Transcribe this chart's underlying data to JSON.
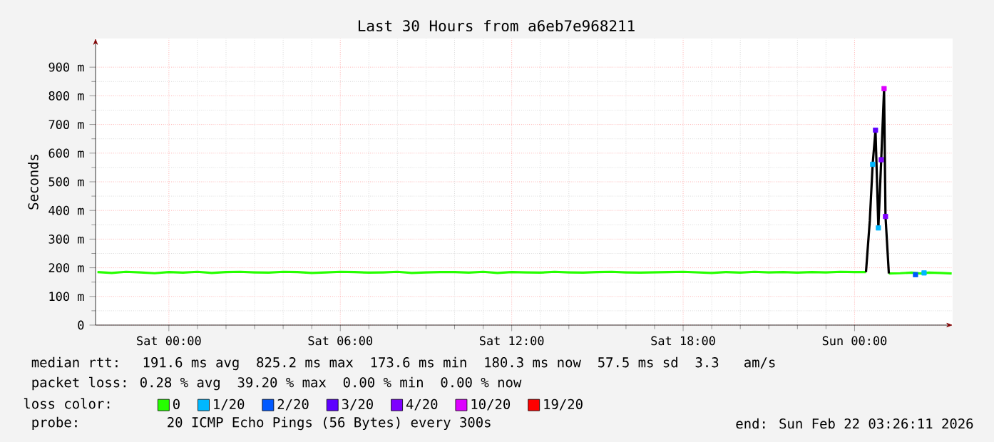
{
  "chart_data": {
    "type": "line",
    "title": "Last 30 Hours from a6eb7e968211",
    "ylabel": "Seconds",
    "legend_title": "loss color:",
    "xlim": [
      "2026-02-20T21:26",
      "2026-02-22T03:26"
    ],
    "xticks": [
      {
        "value": "2026-02-21T00:00",
        "label": "Sat 00:00"
      },
      {
        "value": "2026-02-21T06:00",
        "label": "Sat 06:00"
      },
      {
        "value": "2026-02-21T12:00",
        "label": "Sat 12:00"
      },
      {
        "value": "2026-02-21T18:00",
        "label": "Sat 18:00"
      },
      {
        "value": "2026-02-22T00:00",
        "label": "Sun 00:00"
      }
    ],
    "ylim": [
      0,
      1000
    ],
    "yticks": [
      0,
      {
        "value": 100,
        "label": "100 m"
      },
      {
        "value": 200,
        "label": "200 m"
      },
      {
        "value": 300,
        "label": "300 m"
      },
      {
        "value": 400,
        "label": "400 m"
      },
      {
        "value": 500,
        "label": "500 m"
      },
      {
        "value": 600,
        "label": "600 m"
      },
      {
        "value": 700,
        "label": "700 m"
      },
      {
        "value": 800,
        "label": "800 m"
      },
      {
        "value": 900,
        "label": "900 m"
      }
    ],
    "grid": true,
    "legend": "bottom",
    "series": [
      {
        "name": "0",
        "color": "#26ff00",
        "marker": "none",
        "x": [
          "2026-02-20T21:30",
          "2026-02-20T22:00",
          "2026-02-20T22:30",
          "2026-02-20T23:00",
          "2026-02-20T23:30",
          "2026-02-21T00:00",
          "2026-02-21T00:30",
          "2026-02-21T01:00",
          "2026-02-21T01:30",
          "2026-02-21T02:00",
          "2026-02-21T02:30",
          "2026-02-21T03:00",
          "2026-02-21T03:30",
          "2026-02-21T04:00",
          "2026-02-21T04:30",
          "2026-02-21T05:00",
          "2026-02-21T05:30",
          "2026-02-21T06:00",
          "2026-02-21T06:30",
          "2026-02-21T07:00",
          "2026-02-21T07:30",
          "2026-02-21T08:00",
          "2026-02-21T08:30",
          "2026-02-21T09:00",
          "2026-02-21T09:30",
          "2026-02-21T10:00",
          "2026-02-21T10:30",
          "2026-02-21T11:00",
          "2026-02-21T11:30",
          "2026-02-21T12:00",
          "2026-02-21T12:30",
          "2026-02-21T13:00",
          "2026-02-21T13:30",
          "2026-02-21T14:00",
          "2026-02-21T14:30",
          "2026-02-21T15:00",
          "2026-02-21T15:30",
          "2026-02-21T16:00",
          "2026-02-21T16:30",
          "2026-02-21T17:00",
          "2026-02-21T17:30",
          "2026-02-21T18:00",
          "2026-02-21T18:30",
          "2026-02-21T19:00",
          "2026-02-21T19:30",
          "2026-02-21T20:00",
          "2026-02-21T20:30",
          "2026-02-21T21:00",
          "2026-02-21T21:30",
          "2026-02-21T22:00",
          "2026-02-21T22:30",
          "2026-02-21T23:00",
          "2026-02-21T23:30",
          "2026-02-22T00:00",
          "2026-02-22T00:24",
          "2026-02-22T00:27",
          "2026-02-22T01:12",
          "2026-02-22T01:36",
          "2026-02-22T02:00",
          "2026-02-22T02:18",
          "2026-02-22T02:36",
          "2026-02-22T03:00",
          "2026-02-22T03:24"
        ],
        "values": [
          185,
          182,
          186,
          184,
          181,
          185,
          183,
          186,
          182,
          185,
          186,
          184,
          183,
          186,
          185,
          182,
          184,
          186,
          185,
          183,
          184,
          186,
          182,
          184,
          185,
          185,
          183,
          186,
          182,
          185,
          184,
          183,
          186,
          184,
          183,
          185,
          186,
          184,
          183,
          184,
          185,
          186,
          184,
          182,
          185,
          183,
          186,
          184,
          185,
          183,
          185,
          184,
          186,
          185,
          185,
          null,
          180,
          181,
          183,
          180,
          183,
          182,
          180
        ]
      },
      {
        "color": "#000000",
        "marker": "none",
        "x": [
          "2026-02-22T00:24",
          "2026-02-22T00:32",
          "2026-02-22T00:38",
          "2026-02-22T00:44",
          "2026-02-22T00:50",
          "2026-02-22T00:56",
          "2026-02-22T01:02",
          "2026-02-22T01:05",
          "2026-02-22T01:12"
        ],
        "values": [
          185,
          364,
          561,
          680,
          339,
          577,
          825,
          379,
          180
        ]
      },
      {
        "name": "1/20",
        "color": "#00b8ff",
        "type": "scatter",
        "marker": "square",
        "x": [
          "2026-02-22T00:38",
          "2026-02-22T00:50",
          "2026-02-22T02:26"
        ],
        "values": [
          561,
          339,
          182
        ]
      },
      {
        "name": "2/20",
        "color": "#0059ff",
        "type": "scatter",
        "marker": "square",
        "x": [
          "2026-02-22T02:08"
        ],
        "values": [
          176
        ]
      },
      {
        "name": "3/20",
        "color": "#5e00ff",
        "type": "scatter",
        "marker": "square",
        "x": [
          "2026-02-22T00:44"
        ],
        "values": [
          680
        ]
      },
      {
        "name": "4/20",
        "color": "#7e00ff",
        "type": "scatter",
        "marker": "square",
        "x": [
          "2026-02-22T00:56",
          "2026-02-22T01:05"
        ],
        "values": [
          577,
          379
        ]
      },
      {
        "name": "10/20",
        "color": "#dd00ff",
        "type": "scatter",
        "marker": "square",
        "x": [
          "2026-02-22T01:02"
        ],
        "values": [
          825
        ]
      },
      {
        "name": "19/20",
        "color": "#ff0000",
        "type": "scatter",
        "marker": "square"
      }
    ],
    "annotations": [
      "median rtt:  191.6 ms avg  825.2 ms max  173.6 ms min  180.3 ms now  57.5 ms sd  3.3   am/s",
      "packet loss: 0.28 % avg  39.20 % max  0.00 % min  0.00 % now",
      "probe:        20 ICMP Echo Pings (56 Bytes) every 300s",
      "end: Sun Feb 22 03:26:11 2026"
    ]
  }
}
